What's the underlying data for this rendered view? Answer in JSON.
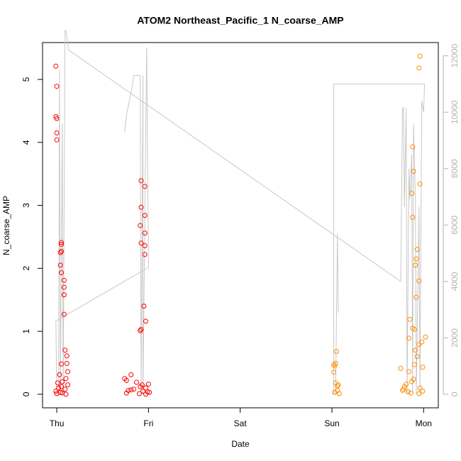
{
  "chart_data": {
    "type": "scatter",
    "title": "ATOM2 Northeast_Pacific_1 N_coarse_AMP",
    "xlabel": "Date",
    "ylabel": "N_coarse_AMP",
    "xlim": [
      -0.155,
      4.16
    ],
    "xticks": [
      {
        "value": 0,
        "label": "Thu"
      },
      {
        "value": 1,
        "label": "Fri"
      },
      {
        "value": 2,
        "label": "Sat"
      },
      {
        "value": 3,
        "label": "Sun"
      },
      {
        "value": 4,
        "label": "Mon"
      }
    ],
    "ylim": [
      -0.215,
      5.585
    ],
    "yticks": [
      0,
      1,
      2,
      3,
      4,
      5
    ],
    "y2lim": [
      -480,
      12470
    ],
    "y2ticks": [
      0,
      2000,
      4000,
      6000,
      8000,
      10000,
      12000
    ],
    "y2color": "#b3b3b3",
    "series": [
      {
        "color": "#ff0000",
        "x": [
          -0.01,
          0,
          -0.01,
          0,
          0,
          0,
          0.05,
          0.05,
          0.05,
          0.04,
          0.04,
          0.05,
          0.08,
          0.08,
          0.08,
          0.08,
          0.09,
          0.11,
          0.11,
          0.05,
          0.12,
          0.03,
          0.1,
          0.06,
          0.01,
          0.12,
          0.05,
          0.02,
          0.09,
          -0.01,
          0.04,
          0,
          0.06,
          0.1,
          0.92,
          0.96,
          0.92,
          0.96,
          0.91,
          0.96,
          0.92,
          0.96,
          0.96,
          0.95,
          0.97,
          0.92,
          0.91,
          0.81,
          0.74,
          0.76,
          1.0,
          0.87,
          0.93,
          0.91,
          0.97,
          0.84,
          0.78,
          0.94,
          0.99,
          0.76,
          0.9,
          0.97,
          1.01,
          0.81
        ],
        "values": [
          5.21,
          4.89,
          4.41,
          4.38,
          4.15,
          4.04,
          2.41,
          2.38,
          2.27,
          2.25,
          2.05,
          1.93,
          1.81,
          1.7,
          1.58,
          1.27,
          0.7,
          0.61,
          0.49,
          0.48,
          0.36,
          0.31,
          0.25,
          0.2,
          0.18,
          0.15,
          0.12,
          0.1,
          0.08,
          0.05,
          0.03,
          0.01,
          0.02,
          0,
          3.39,
          3.3,
          2.97,
          2.84,
          2.68,
          2.56,
          2.4,
          2.36,
          2.22,
          1.4,
          1.16,
          1.03,
          1.01,
          0.31,
          0.25,
          0.22,
          0.16,
          0.19,
          0.15,
          0.12,
          0.1,
          0.08,
          0.06,
          0.05,
          0.04,
          0.02,
          0.01,
          0,
          0.03,
          0.07
        ]
      },
      {
        "color": "#ff8c00",
        "x": [
          3.05,
          3.04,
          3.02,
          3.03,
          3.02,
          3.04,
          3.07,
          3.06,
          3.06,
          3.03,
          3.08,
          3.96,
          3.95,
          3.88,
          3.89,
          3.96,
          3.87,
          3.88,
          3.93,
          3.92,
          3.91,
          3.95,
          3.92,
          3.85,
          3.88,
          3.9,
          3.84,
          4.02,
          3.98,
          3.95,
          3.91,
          3.93,
          3.9,
          3.99,
          3.75,
          3.84,
          3.89,
          3.87,
          3.81,
          3.79,
          3.78,
          3.77,
          3.83,
          3.86,
          3.95,
          3.96,
          3.99
        ],
        "values": [
          0.68,
          0.49,
          0.47,
          0.45,
          0.35,
          0.18,
          0.15,
          0.13,
          0.06,
          0.03,
          0.01,
          5.37,
          5.18,
          3.93,
          3.54,
          3.34,
          3.19,
          2.81,
          2.3,
          2.15,
          2.05,
          1.8,
          1.54,
          1.19,
          1.05,
          1.03,
          0.89,
          0.91,
          0.83,
          0.79,
          0.7,
          0.6,
          0.47,
          0.43,
          0.41,
          0.36,
          0.24,
          0.2,
          0.16,
          0.12,
          0.08,
          0.06,
          0.04,
          0.02,
          0.01,
          0.1,
          0.05
        ]
      },
      {
        "type": "line",
        "axis": "y2",
        "color": "#c8c8c8",
        "x": [
          0.74,
          0.76,
          0.81,
          0.84,
          0.91,
          0.92,
          0.94,
          0.94,
          0.98,
          1.0,
          -0.01,
          0,
          0.02,
          0.03,
          0.04,
          0.06,
          0.07,
          0.09,
          0.1,
          0.13,
          3.75,
          3.77,
          3.78,
          3.79,
          3.81,
          3.82,
          3.84,
          3.85,
          3.87,
          3.88,
          3.89,
          3.91,
          3.92,
          3.95,
          3.96,
          3.98,
          4.0,
          4.01,
          3.02,
          3.02,
          3.04,
          3.06,
          3.07
        ],
        "values": [
          9300,
          9900,
          10700,
          11300,
          11300,
          0,
          11300,
          0,
          12300,
          4500,
          2600,
          0,
          0,
          11500,
          0,
          9600,
          0,
          12900,
          12900,
          12200,
          4000,
          10150,
          10150,
          6650,
          10150,
          0,
          8000,
          6900,
          8500,
          0,
          9600,
          6900,
          0,
          6650,
          0,
          10400,
          10000,
          11000,
          11000,
          0,
          0,
          5700,
          2900
        ]
      }
    ]
  }
}
